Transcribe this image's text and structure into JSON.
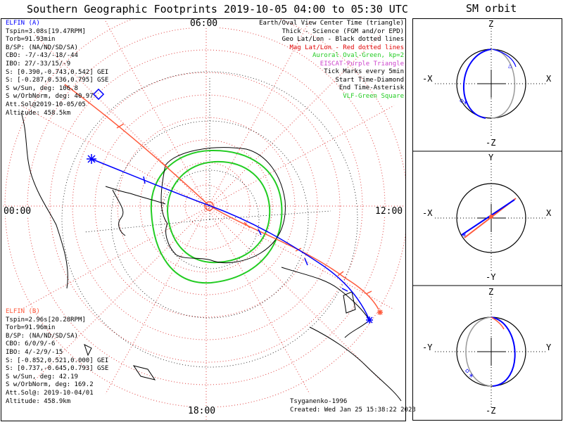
{
  "title": "Southern Geographic Footprints 2019-10-05 04:00 to 05:30 UTC",
  "orbit_title": "SM orbit",
  "hour_labels": {
    "top": "06:00",
    "left": "00:00",
    "right": "12:00",
    "bottom": "18:00"
  },
  "legend": [
    {
      "text": "Earth/Oval View Center Time (triangle)",
      "color": "#000000"
    },
    {
      "text": "Thick - Science (FGM and/or EPD)",
      "color": "#000000"
    },
    {
      "text": "Geo Lat/Lon - Black dotted lines",
      "color": "#000000"
    },
    {
      "text": "Mag Lat/Lon - Red dotted lines",
      "color": "#e00000"
    },
    {
      "text": "Auroral Oval-Green, kp=2",
      "color": "#22cc22"
    },
    {
      "text": "EISCAT-Purple Triangle",
      "color": "#cc44cc"
    },
    {
      "text": "Tick Marks every 5min",
      "color": "#000000"
    },
    {
      "text": "Start Time-Diamond",
      "color": "#000000"
    },
    {
      "text": "End Time-Asterisk",
      "color": "#000000"
    },
    {
      "text": "VLF-Green Square",
      "color": "#22cc22"
    }
  ],
  "elfin_a": {
    "color": "#0000ff",
    "lines": [
      "ELFIN (A)",
      "Tspin=3.08s[19.47RPM]",
      "Torb=91.93min",
      "B/SP: (NA/ND/SD/SA)",
      "CBO: -7/-43/-18/-44",
      "IBO: 27/-33/15/-9",
      "S: [0.390,-0.743,0.542] GEI",
      "S: [-0.287,0.536,0.795] GSE",
      "S w/Sun, deg: 106.8",
      "S w/OrbNorm, deg: 40.97",
      "Att.Sol@2019-10-05/05",
      "Altitude: 458.5km"
    ]
  },
  "elfin_b": {
    "color": "#ff5a3c",
    "lines": [
      "ELFIN (B)",
      "Tspin=2.96s[20.28RPM]",
      "Torb=91.96min",
      "B/SP: (NA/ND/SD/SA)",
      "CBO: 6/0/9/-6",
      "IBO: 4/-2/9/-15",
      "S: [-0.852,0.521,0.000] GEI",
      "S: [0.737,-0.645,0.793] GSE",
      "S w/Sun, deg: 42.19",
      "S w/OrbNorm, deg: 169.2",
      "Att.Sol@: 2019-10-04/01",
      "Altitude: 458.9km"
    ]
  },
  "credit": {
    "model": "Tsyganenko-1996",
    "created": "Created: Wed Jan 25 15:38:22 2023"
  },
  "orbit_panels": [
    {
      "top": "Z",
      "bottom": "-Z",
      "left": "-X",
      "right": "X"
    },
    {
      "top": "Y",
      "bottom": "-Y",
      "left": "-X",
      "right": "X"
    },
    {
      "top": "Z",
      "bottom": "-Z",
      "left": "-Y",
      "right": "Y"
    }
  ],
  "colors": {
    "probe_a": "#0000ff",
    "probe_b": "#ff5a3c",
    "oval": "#22cc22",
    "grid_mag": "#e04040",
    "grid_geo": "#000000"
  }
}
